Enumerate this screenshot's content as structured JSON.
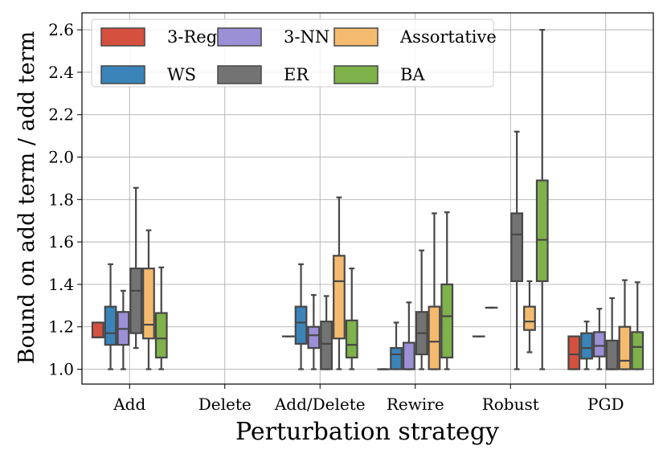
{
  "chart_data": {
    "type": "boxplot",
    "title": "",
    "xlabel": "Perturbation strategy",
    "ylabel": "Bound on add term / add term",
    "ylim": [
      0.93,
      2.68
    ],
    "yticks": [
      1.0,
      1.2,
      1.4,
      1.6,
      1.8,
      2.0,
      2.2,
      2.4,
      2.6
    ],
    "ytick_labels": [
      "1.0",
      "1.2",
      "1.4",
      "1.6",
      "1.8",
      "2.0",
      "2.2",
      "2.4",
      "2.6"
    ],
    "grid": true,
    "legend_position": "top-left",
    "categories": [
      "Add",
      "Delete",
      "Add/Delete",
      "Rewire",
      "Robust",
      "PGD"
    ],
    "series": [
      {
        "name": "3-Reg",
        "color": "#d6503f",
        "boxes": [
          {
            "whislo": 1.15,
            "q1": 1.15,
            "med": 1.15,
            "q3": 1.22,
            "whishi": 1.22
          },
          null,
          {
            "whislo": 1.155,
            "q1": 1.155,
            "med": 1.155,
            "q3": 1.155,
            "whishi": 1.155
          },
          {
            "whislo": 1.0,
            "q1": 1.0,
            "med": 1.0,
            "q3": 1.0,
            "whishi": 1.0
          },
          {
            "whislo": 1.155,
            "q1": 1.155,
            "med": 1.155,
            "q3": 1.155,
            "whishi": 1.155
          },
          {
            "whislo": 1.0,
            "q1": 1.0,
            "med": 1.07,
            "q3": 1.155,
            "whishi": 1.155
          }
        ]
      },
      {
        "name": "WS",
        "color": "#3a84b9",
        "boxes": [
          {
            "whislo": 1.0,
            "q1": 1.115,
            "med": 1.17,
            "q3": 1.295,
            "whishi": 1.495
          },
          null,
          {
            "whislo": 1.0,
            "q1": 1.12,
            "med": 1.22,
            "q3": 1.295,
            "whishi": 1.495
          },
          {
            "whislo": 1.0,
            "q1": 1.0,
            "med": 1.07,
            "q3": 1.1,
            "whishi": 1.22
          },
          {
            "whislo": 1.29,
            "q1": 1.29,
            "med": 1.29,
            "q3": 1.29,
            "whishi": 1.29
          },
          {
            "whislo": 1.0,
            "q1": 1.05,
            "med": 1.1,
            "q3": 1.17,
            "whishi": 1.225
          }
        ]
      },
      {
        "name": "3-NN",
        "color": "#9b8fd6",
        "boxes": [
          {
            "whislo": 1.0,
            "q1": 1.115,
            "med": 1.19,
            "q3": 1.27,
            "whishi": 1.37
          },
          null,
          {
            "whislo": 1.0,
            "q1": 1.1,
            "med": 1.16,
            "q3": 1.2,
            "whishi": 1.35
          },
          {
            "whislo": 1.0,
            "q1": 1.0,
            "med": 1.0,
            "q3": 1.125,
            "whishi": 1.315
          },
          null,
          {
            "whislo": 1.0,
            "q1": 1.06,
            "med": 1.11,
            "q3": 1.175,
            "whishi": 1.285
          }
        ]
      },
      {
        "name": "ER",
        "color": "#737373",
        "boxes": [
          {
            "whislo": 1.1,
            "q1": 1.17,
            "med": 1.37,
            "q3": 1.475,
            "whishi": 1.855
          },
          null,
          {
            "whislo": 1.0,
            "q1": 1.0,
            "med": 1.12,
            "q3": 1.225,
            "whishi": 1.345
          },
          {
            "whislo": 1.0,
            "q1": 1.07,
            "med": 1.17,
            "q3": 1.27,
            "whishi": 1.56
          },
          {
            "whislo": 1.0,
            "q1": 1.415,
            "med": 1.635,
            "q3": 1.735,
            "whishi": 2.12
          },
          {
            "whislo": 1.0,
            "q1": 1.0,
            "med": 1.0,
            "q3": 1.135,
            "whishi": 1.335
          }
        ]
      },
      {
        "name": "Assortative",
        "color": "#f4bb6f",
        "boxes": [
          {
            "whislo": 1.0,
            "q1": 1.145,
            "med": 1.21,
            "q3": 1.475,
            "whishi": 1.655
          },
          null,
          {
            "whislo": 1.0,
            "q1": 1.145,
            "med": 1.415,
            "q3": 1.535,
            "whishi": 1.81
          },
          {
            "whislo": 1.0,
            "q1": 1.0,
            "med": 1.13,
            "q3": 1.295,
            "whishi": 1.735
          },
          {
            "whislo": 1.08,
            "q1": 1.185,
            "med": 1.225,
            "q3": 1.295,
            "whishi": 1.415
          },
          {
            "whislo": 1.0,
            "q1": 1.0,
            "med": 1.04,
            "q3": 1.2,
            "whishi": 1.42
          }
        ]
      },
      {
        "name": "BA",
        "color": "#7fb24a",
        "boxes": [
          {
            "whislo": 1.0,
            "q1": 1.055,
            "med": 1.145,
            "q3": 1.265,
            "whishi": 1.48
          },
          null,
          {
            "whislo": 1.0,
            "q1": 1.055,
            "med": 1.115,
            "q3": 1.23,
            "whishi": 1.475
          },
          {
            "whislo": 1.0,
            "q1": 1.055,
            "med": 1.25,
            "q3": 1.4,
            "whishi": 1.74
          },
          {
            "whislo": 1.0,
            "q1": 1.415,
            "med": 1.61,
            "q3": 1.89,
            "whishi": 2.6
          },
          {
            "whislo": 1.0,
            "q1": 1.0,
            "med": 1.105,
            "q3": 1.175,
            "whishi": 1.41
          }
        ]
      }
    ]
  }
}
